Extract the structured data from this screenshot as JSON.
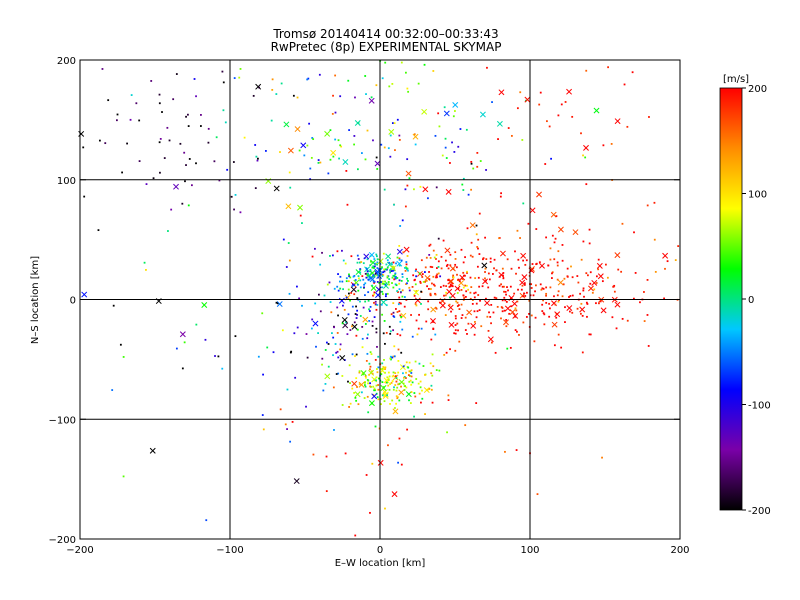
{
  "chart_data": {
    "type": "scatter",
    "title": "Tromsø 20140414 00:32:00–00:33:43",
    "subtitle": "RwPretec (8p) EXPERIMENTAL SKYMAP",
    "xlabel": "E–W location [km]",
    "ylabel": "N–S location [km]",
    "xlim": [
      -200,
      200
    ],
    "ylim": [
      -200,
      200
    ],
    "xticks": [
      -200,
      -100,
      0,
      100,
      200
    ],
    "yticks": [
      -200,
      -100,
      0,
      100,
      200
    ],
    "grid_lines_x": [
      -100,
      0,
      100
    ],
    "grid_lines_y": [
      -100,
      0,
      100
    ],
    "marker_types": [
      "dot",
      "cross"
    ],
    "colorbar": {
      "label": "[m/s]",
      "min": -200,
      "max": 200,
      "ticks": [
        200,
        100,
        0,
        -100,
        -200
      ],
      "colormap": [
        "#000000",
        "#7a00a8",
        "#0000ff",
        "#00c8ff",
        "#00ff00",
        "#ffff00",
        "#ff8c00",
        "#ff0000"
      ],
      "placement": "right"
    },
    "clusters": [
      {
        "name": "",
        "x": 90,
        "y": 5,
        "sx": 45,
        "sy": 22,
        "n": 380,
        "v": 200,
        "dv": 30
      },
      {
        "name": "",
        "x": 40,
        "y": 15,
        "sx": 20,
        "sy": 15,
        "n": 120,
        "v": 180,
        "dv": 40
      },
      {
        "name": "",
        "x": 0,
        "y": 20,
        "sx": 12,
        "sy": 10,
        "n": 220,
        "v": -20,
        "dv": 60
      },
      {
        "name": "",
        "x": 5,
        "y": -70,
        "sx": 15,
        "sy": 12,
        "n": 200,
        "v": 80,
        "dv": 50
      },
      {
        "name": "",
        "x": -20,
        "y": -20,
        "sx": 20,
        "sy": 22,
        "n": 130,
        "v": -80,
        "dv": 110
      },
      {
        "name": "",
        "x": 0,
        "y": 140,
        "sx": 55,
        "sy": 35,
        "n": 160,
        "v": 0,
        "dv": 90
      },
      {
        "name": "",
        "x": -145,
        "y": 140,
        "sx": 35,
        "sy": 30,
        "n": 60,
        "v": -190,
        "dv": 30
      },
      {
        "name": "",
        "x": 100,
        "y": 100,
        "sx": 70,
        "sy": 60,
        "n": 90,
        "v": 195,
        "dv": 20
      },
      {
        "name": "",
        "x": -90,
        "y": 0,
        "sx": 80,
        "sy": 90,
        "n": 90,
        "v": -100,
        "dv": 120
      },
      {
        "name": "",
        "x": 20,
        "y": -130,
        "sx": 60,
        "sy": 30,
        "n": 30,
        "v": 180,
        "dv": 40
      }
    ]
  }
}
